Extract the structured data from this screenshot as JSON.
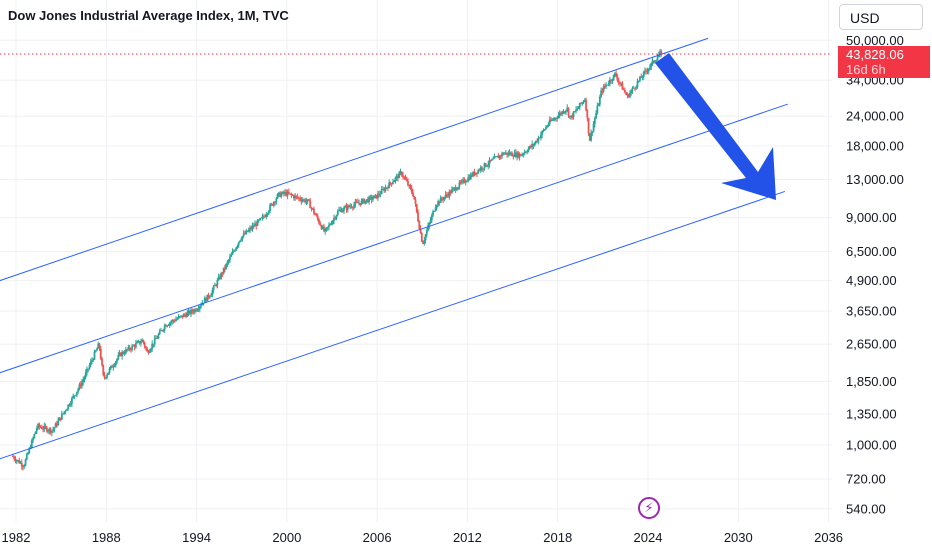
{
  "header": {
    "title": "Dow Jones Industrial Average Index, 1M, TVC",
    "currency": "USD"
  },
  "price_label": {
    "price": "43,828.06",
    "countdown": "16d 6h"
  },
  "colors": {
    "up": "#26a69a",
    "down": "#ef5350",
    "channel": "#2962ff",
    "arrow": "#2352e8",
    "price_line": "#f23645",
    "grid": "#eef0f3"
  },
  "icons": {
    "bolt": "lightning-bolt-icon"
  },
  "chart_data": {
    "type": "candlestick",
    "title": "Dow Jones Industrial Average Index, 1M, TVC",
    "y_scale": "log",
    "y_ticks": [
      {
        "value": 50000,
        "label": "50,000.00"
      },
      {
        "value": 34000,
        "label": "34,000.00"
      },
      {
        "value": 24000,
        "label": "24,000.00"
      },
      {
        "value": 18000,
        "label": "18,000.00"
      },
      {
        "value": 13000,
        "label": "13,000.00"
      },
      {
        "value": 9000,
        "label": "9,000.00"
      },
      {
        "value": 6500,
        "label": "6,500.00"
      },
      {
        "value": 4900,
        "label": "4,900.00"
      },
      {
        "value": 3650,
        "label": "3,650.00"
      },
      {
        "value": 2650,
        "label": "2,650.00"
      },
      {
        "value": 1850,
        "label": "1,850.00"
      },
      {
        "value": 1350,
        "label": "1,350.00"
      },
      {
        "value": 1000,
        "label": "1,000.00"
      },
      {
        "value": 720,
        "label": "720.00"
      },
      {
        "value": 540,
        "label": "540.00"
      }
    ],
    "x_ticks": [
      {
        "value": 1982,
        "label": "1982"
      },
      {
        "value": 1988,
        "label": "1988"
      },
      {
        "value": 1994,
        "label": "1994"
      },
      {
        "value": 2000,
        "label": "2000"
      },
      {
        "value": 2006,
        "label": "2006"
      },
      {
        "value": 2012,
        "label": "2012"
      },
      {
        "value": 2018,
        "label": "2018"
      },
      {
        "value": 2024,
        "label": "2024"
      },
      {
        "value": 2030,
        "label": "2030"
      },
      {
        "value": 2036,
        "label": "2036"
      }
    ],
    "last_price": 43828.06,
    "price_anchors": [
      [
        1981.8,
        900
      ],
      [
        1982.6,
        820
      ],
      [
        1983.5,
        1200
      ],
      [
        1984.5,
        1150
      ],
      [
        1985.5,
        1450
      ],
      [
        1986.5,
        1850
      ],
      [
        1987.6,
        2650
      ],
      [
        1987.9,
        1900
      ],
      [
        1989.0,
        2400
      ],
      [
        1990.5,
        2750
      ],
      [
        1990.8,
        2450
      ],
      [
        1992.0,
        3200
      ],
      [
        1994.0,
        3700
      ],
      [
        1995.0,
        4300
      ],
      [
        1996.0,
        5600
      ],
      [
        1997.0,
        7400
      ],
      [
        1998.5,
        9000
      ],
      [
        1999.5,
        11200
      ],
      [
        2000.0,
        11400
      ],
      [
        2001.5,
        10500
      ],
      [
        2002.6,
        7800
      ],
      [
        2003.5,
        9600
      ],
      [
        2004.5,
        10200
      ],
      [
        2006.0,
        11000
      ],
      [
        2007.7,
        13900
      ],
      [
        2008.5,
        11200
      ],
      [
        2009.1,
        7000
      ],
      [
        2010.0,
        10300
      ],
      [
        2011.5,
        12300
      ],
      [
        2013.0,
        14600
      ],
      [
        2014.5,
        16800
      ],
      [
        2015.6,
        16500
      ],
      [
        2016.5,
        18300
      ],
      [
        2017.5,
        22500
      ],
      [
        2018.7,
        26000
      ],
      [
        2018.9,
        23500
      ],
      [
        2019.9,
        28500
      ],
      [
        2020.2,
        19000
      ],
      [
        2021.0,
        30800
      ],
      [
        2021.9,
        36000
      ],
      [
        2022.7,
        29000
      ],
      [
        2023.5,
        34000
      ],
      [
        2024.0,
        37500
      ],
      [
        2024.9,
        44200
      ]
    ],
    "channel_lines": [
      {
        "name": "upper",
        "points": [
          [
            1980.3,
            4750
          ],
          [
            2028.0,
            51000
          ]
        ]
      },
      {
        "name": "middle",
        "points": [
          [
            1980.3,
            1950
          ],
          [
            2033.3,
            27000
          ]
        ]
      },
      {
        "name": "lower",
        "points": [
          [
            1980.8,
            870
          ],
          [
            2033.1,
            11600
          ]
        ]
      }
    ]
  }
}
